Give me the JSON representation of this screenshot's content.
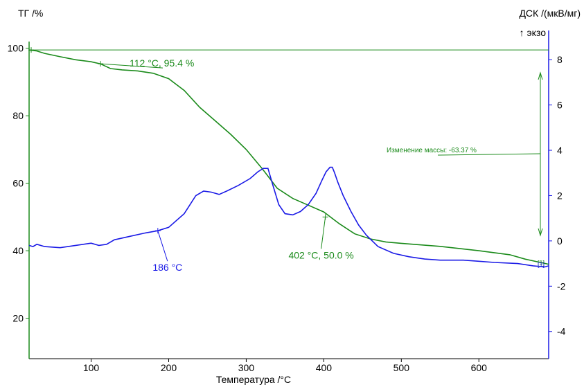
{
  "chart_data": {
    "type": "line",
    "xlabel": "Температура /°C",
    "y_left_label": "ТГ /%",
    "y_right_label": "ДСК /(мкВ/мг)",
    "y_right_sublabel": "↑ экзо",
    "xlim": [
      20,
      690
    ],
    "y_left_lim": [
      8,
      102
    ],
    "y_right_lim": [
      -5.2,
      8.8
    ],
    "x_ticks": [
      100,
      200,
      300,
      400,
      500,
      600
    ],
    "y_left_ticks": [
      20,
      40,
      60,
      80,
      100
    ],
    "y_right_ticks": [
      -4,
      -2,
      0,
      2,
      4,
      6,
      8
    ],
    "colors": {
      "tg": "#1a8a1a",
      "dsc": "#1a1ae6",
      "axis_right": "#1a1ae6",
      "axis_left": "#1a8a1a"
    },
    "series": [
      {
        "key": "tg",
        "axis": "left",
        "x": [
          20,
          30,
          40,
          60,
          80,
          100,
          112,
          125,
          140,
          160,
          180,
          200,
          220,
          240,
          260,
          280,
          300,
          320,
          340,
          360,
          380,
          400,
          420,
          440,
          460,
          480,
          500,
          550,
          600,
          640,
          660,
          690
        ],
        "y": [
          99.5,
          99.2,
          98.5,
          97.5,
          96.6,
          96.0,
          95.4,
          94.0,
          93.6,
          93.3,
          92.6,
          91.0,
          87.5,
          82.5,
          78.5,
          74.5,
          70.0,
          64.5,
          58.5,
          55.5,
          53.5,
          51.5,
          48.0,
          45.0,
          43.5,
          42.6,
          42.2,
          41.3,
          40.0,
          38.8,
          37.5,
          36.0
        ]
      },
      {
        "key": "dsc",
        "axis": "right",
        "x": [
          20,
          25,
          30,
          40,
          60,
          80,
          100,
          110,
          120,
          130,
          150,
          170,
          186,
          200,
          220,
          235,
          245,
          255,
          265,
          275,
          290,
          305,
          315,
          322,
          328,
          334,
          342,
          350,
          360,
          370,
          380,
          390,
          398,
          403,
          408,
          411,
          414,
          418,
          425,
          435,
          445,
          455,
          470,
          490,
          510,
          530,
          550,
          580,
          600,
          620,
          650,
          670,
          685,
          690
        ],
        "y": [
          -0.2,
          -0.25,
          -0.15,
          -0.25,
          -0.3,
          -0.2,
          -0.1,
          -0.2,
          -0.15,
          0.05,
          0.2,
          0.35,
          0.45,
          0.6,
          1.2,
          2.0,
          2.2,
          2.15,
          2.05,
          2.2,
          2.45,
          2.75,
          3.05,
          3.2,
          3.2,
          2.5,
          1.6,
          1.2,
          1.15,
          1.3,
          1.6,
          2.1,
          2.7,
          3.05,
          3.25,
          3.25,
          3.0,
          2.6,
          2.0,
          1.3,
          0.7,
          0.25,
          -0.25,
          -0.55,
          -0.7,
          -0.8,
          -0.85,
          -0.85,
          -0.9,
          -0.95,
          -1.0,
          -1.1,
          -1.15,
          -1.1
        ]
      }
    ],
    "annotations": [
      {
        "text": "112 °C, 95.4 %",
        "series": "tg",
        "x": 112,
        "y": 95.4
      },
      {
        "text": "402 °C, 50.0 %",
        "series": "tg",
        "x": 402,
        "y": 50.0
      },
      {
        "text": "186 °C",
        "series": "dsc",
        "x": 186,
        "y": 0.45
      },
      {
        "text": "Изменение массы: -63.37 %",
        "series": "tg"
      }
    ],
    "end_markers": [
      "[1]",
      "[1]"
    ]
  }
}
